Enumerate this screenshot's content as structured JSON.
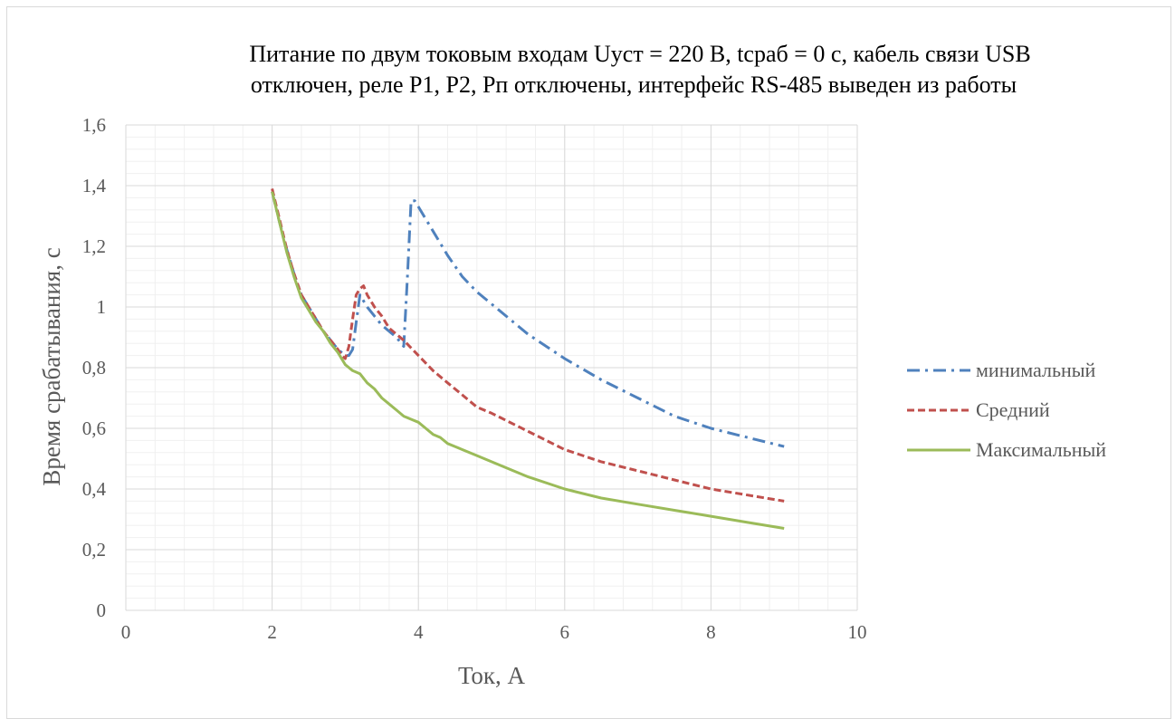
{
  "chart_data": {
    "type": "line",
    "title": [
      "Питание по двум токовым входам Uуст = 220 В, tсраб = 0 с, кабель связи USB",
      "отключен, реле Р1, Р2, Рп отключены, интерфейс RS-485 выведен из работы"
    ],
    "xlabel": "Ток, А",
    "ylabel": "Время срабатывания, с",
    "xlim": [
      0,
      10
    ],
    "ylim": [
      0,
      1.6
    ],
    "x_ticks": [
      "0",
      "2",
      "4",
      "6",
      "8",
      "10"
    ],
    "y_ticks": [
      "0",
      "0,2",
      "0,4",
      "0,6",
      "0,8",
      "1",
      "1,2",
      "1,4",
      "1,6"
    ],
    "grid": {
      "major": true,
      "minor": true
    },
    "legend_position": "right",
    "series": [
      {
        "name": "минимальный",
        "color": "#4f81bd",
        "dash": "dashdot",
        "x": [
          2.0,
          2.1,
          2.2,
          2.3,
          2.4,
          2.5,
          2.6,
          2.7,
          2.8,
          2.9,
          3.0,
          3.05,
          3.1,
          3.15,
          3.2,
          3.3,
          3.4,
          3.5,
          3.6,
          3.7,
          3.8,
          3.85,
          3.9,
          3.95,
          4.0,
          4.2,
          4.4,
          4.6,
          4.8,
          5.0,
          5.5,
          6.0,
          6.5,
          7.0,
          7.5,
          8.0,
          8.5,
          9.0
        ],
        "y": [
          1.38,
          1.28,
          1.19,
          1.11,
          1.04,
          1.0,
          0.96,
          0.92,
          0.89,
          0.86,
          0.84,
          0.84,
          0.86,
          0.95,
          1.04,
          1.0,
          0.97,
          0.94,
          0.92,
          0.9,
          0.87,
          1.1,
          1.35,
          1.35,
          1.33,
          1.25,
          1.17,
          1.1,
          1.05,
          1.01,
          0.91,
          0.83,
          0.76,
          0.7,
          0.64,
          0.6,
          0.57,
          0.54
        ]
      },
      {
        "name": "Средний",
        "color": "#c0504d",
        "dash": "dashed",
        "x": [
          2.0,
          2.1,
          2.2,
          2.3,
          2.4,
          2.5,
          2.6,
          2.7,
          2.8,
          2.9,
          2.95,
          3.0,
          3.05,
          3.1,
          3.15,
          3.2,
          3.25,
          3.3,
          3.4,
          3.5,
          3.6,
          3.8,
          4.0,
          4.2,
          4.4,
          4.6,
          4.8,
          5.0,
          5.5,
          6.0,
          6.5,
          7.0,
          7.5,
          8.0,
          8.5,
          9.0
        ],
        "y": [
          1.39,
          1.29,
          1.19,
          1.11,
          1.04,
          1.0,
          0.96,
          0.92,
          0.89,
          0.86,
          0.84,
          0.83,
          0.87,
          0.96,
          1.04,
          1.06,
          1.07,
          1.04,
          1.0,
          0.97,
          0.93,
          0.89,
          0.84,
          0.79,
          0.75,
          0.71,
          0.67,
          0.65,
          0.59,
          0.53,
          0.49,
          0.46,
          0.43,
          0.4,
          0.38,
          0.36
        ]
      },
      {
        "name": "Максимальный",
        "color": "#9bbb59",
        "dash": "solid",
        "x": [
          2.0,
          2.1,
          2.2,
          2.3,
          2.4,
          2.5,
          2.6,
          2.7,
          2.8,
          2.9,
          3.0,
          3.1,
          3.2,
          3.3,
          3.4,
          3.5,
          3.6,
          3.7,
          3.8,
          3.9,
          4.0,
          4.1,
          4.2,
          4.3,
          4.4,
          4.5,
          4.6,
          4.8,
          5.0,
          5.5,
          6.0,
          6.5,
          7.0,
          7.5,
          8.0,
          8.5,
          9.0
        ],
        "y": [
          1.38,
          1.28,
          1.18,
          1.1,
          1.03,
          0.99,
          0.95,
          0.92,
          0.88,
          0.85,
          0.81,
          0.79,
          0.78,
          0.75,
          0.73,
          0.7,
          0.68,
          0.66,
          0.64,
          0.63,
          0.62,
          0.6,
          0.58,
          0.57,
          0.55,
          0.54,
          0.53,
          0.51,
          0.49,
          0.44,
          0.4,
          0.37,
          0.35,
          0.33,
          0.31,
          0.29,
          0.27
        ]
      }
    ]
  }
}
